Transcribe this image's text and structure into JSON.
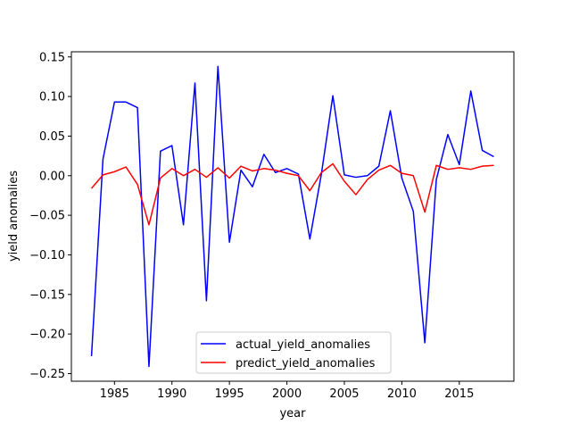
{
  "chart_data": {
    "type": "line",
    "xlabel": "year",
    "ylabel": "yield anomalies",
    "xlim": [
      1981.25,
      2019.75
    ],
    "ylim": [
      -0.2596,
      0.1565
    ],
    "x_ticks": [
      1985,
      1990,
      1995,
      2000,
      2005,
      2010,
      2015
    ],
    "y_ticks": [
      -0.25,
      -0.2,
      -0.15,
      -0.1,
      -0.05,
      0.0,
      0.05,
      0.1,
      0.15
    ],
    "x_tick_labels": [
      "1985",
      "1990",
      "1995",
      "2000",
      "2005",
      "2010",
      "2015"
    ],
    "y_tick_labels": [
      "−0.25",
      "−0.20",
      "−0.15",
      "−0.10",
      "−0.05",
      "0.00",
      "0.05",
      "0.10",
      "0.15"
    ],
    "grid": false,
    "legend_position": "lower-center",
    "x": [
      1983,
      1984,
      1985,
      1986,
      1987,
      1988,
      1989,
      1990,
      1991,
      1992,
      1993,
      1994,
      1995,
      1996,
      1997,
      1998,
      1999,
      2000,
      2001,
      2002,
      2003,
      2004,
      2005,
      2006,
      2007,
      2008,
      2009,
      2010,
      2011,
      2012,
      2013,
      2014,
      2015,
      2016,
      2017,
      2018
    ],
    "series": [
      {
        "name": "actual_yield_anomalies",
        "color": "#0000ff",
        "values": [
          -0.228,
          0.021,
          0.093,
          0.093,
          0.086,
          -0.241,
          0.031,
          0.038,
          -0.062,
          0.117,
          -0.158,
          0.138,
          -0.084,
          0.007,
          -0.014,
          0.027,
          0.004,
          0.009,
          0.002,
          -0.08,
          0.002,
          0.101,
          0.001,
          -0.002,
          0.0,
          0.012,
          0.082,
          -0.003,
          -0.045,
          -0.211,
          -0.005,
          0.052,
          0.014,
          0.107,
          0.032,
          0.024
        ]
      },
      {
        "name": "predict_yield_anomalies",
        "color": "#ff0000",
        "values": [
          -0.016,
          0.001,
          0.005,
          0.011,
          -0.011,
          -0.062,
          -0.003,
          0.009,
          0.0,
          0.008,
          -0.002,
          0.01,
          -0.003,
          0.012,
          0.006,
          0.009,
          0.007,
          0.003,
          0.0,
          -0.019,
          0.004,
          0.015,
          -0.007,
          -0.024,
          -0.005,
          0.007,
          0.013,
          0.003,
          0.0,
          -0.046,
          0.013,
          0.008,
          0.01,
          0.008,
          0.012,
          0.013
        ]
      }
    ]
  }
}
